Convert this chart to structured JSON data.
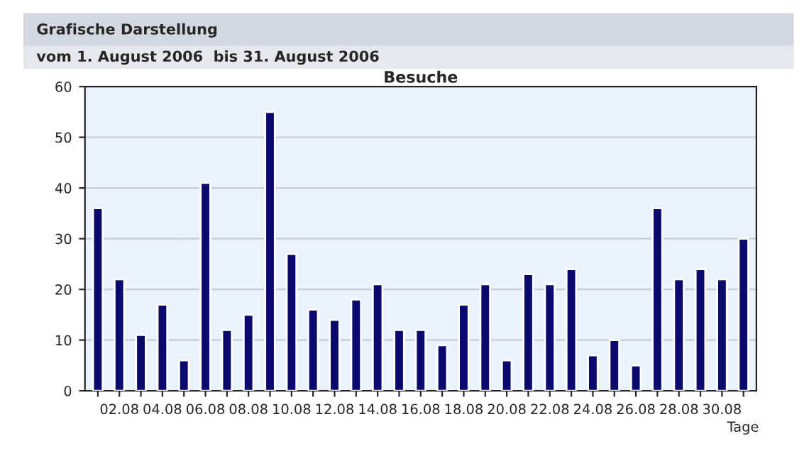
{
  "chart_data": {
    "type": "bar",
    "title": "Besuche",
    "xlabel": "Tage",
    "annotations": [
      "Grafische Darstellung",
      "vom 1. August 2006  bis 31. August 2006"
    ],
    "categories": [
      null,
      "02.08",
      null,
      "04.08",
      null,
      "06.08",
      null,
      "08.08",
      null,
      "10.08",
      null,
      "12.08",
      null,
      "14.08",
      null,
      "16.08",
      null,
      "18.08",
      null,
      "20.08",
      null,
      "22.08",
      null,
      "24.08",
      null,
      "26.08",
      null,
      "28.08",
      null,
      "30.08",
      null
    ],
    "values": [
      36,
      22,
      11,
      17,
      6,
      41,
      12,
      15,
      55,
      27,
      16,
      14,
      18,
      21,
      12,
      12,
      9,
      17,
      21,
      6,
      23,
      21,
      24,
      7,
      10,
      5,
      36,
      22,
      24,
      22,
      30
    ],
    "color": "#0a0a6e",
    "ylim": [
      0,
      60
    ],
    "yticks": [
      0,
      10,
      20,
      30,
      40,
      50,
      60
    ],
    "grid": "y",
    "legend": false
  }
}
